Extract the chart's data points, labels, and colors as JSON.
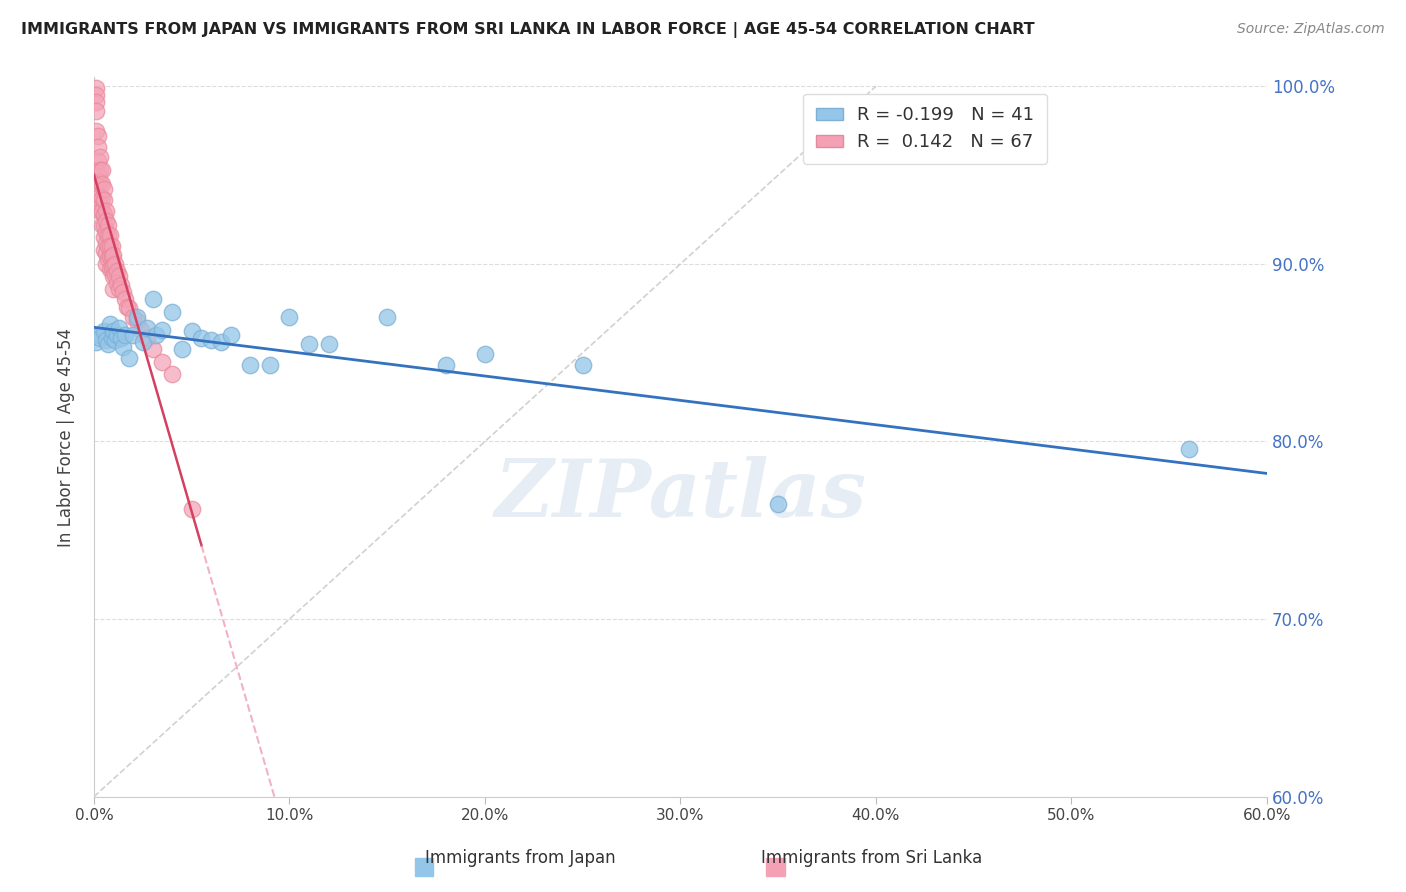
{
  "title": "IMMIGRANTS FROM JAPAN VS IMMIGRANTS FROM SRI LANKA IN LABOR FORCE | AGE 45-54 CORRELATION CHART",
  "source": "Source: ZipAtlas.com",
  "ylabel": "In Labor Force | Age 45-54",
  "xlim": [
    0.0,
    0.6
  ],
  "ylim": [
    0.6,
    1.005
  ],
  "xticks": [
    0.0,
    0.1,
    0.2,
    0.3,
    0.4,
    0.5,
    0.6
  ],
  "yticks": [
    0.6,
    0.7,
    0.8,
    0.9,
    1.0
  ],
  "ytick_labels_right": [
    "60.0%",
    "70.0%",
    "80.0%",
    "90.0%",
    "100.0%"
  ],
  "xtick_labels": [
    "0.0%",
    "10.0%",
    "20.0%",
    "30.0%",
    "40.0%",
    "50.0%",
    "60.0%"
  ],
  "japan_color": "#93C6E8",
  "srilanka_color": "#F4A0B5",
  "japan_edge_color": "#7EB0D5",
  "srilanka_edge_color": "#E8899A",
  "japan_trend_color": "#3472C0",
  "srilanka_trend_solid_color": "#D44060",
  "srilanka_trend_dashed_color": "#E88098",
  "japan_R": -0.199,
  "japan_N": 41,
  "srilanka_R": 0.142,
  "srilanka_N": 67,
  "background_color": "#ffffff",
  "watermark": "ZIPatlas",
  "japan_x": [
    0.001,
    0.003,
    0.003,
    0.005,
    0.006,
    0.007,
    0.008,
    0.009,
    0.01,
    0.011,
    0.012,
    0.013,
    0.014,
    0.015,
    0.016,
    0.018,
    0.02,
    0.022,
    0.025,
    0.027,
    0.03,
    0.032,
    0.035,
    0.04,
    0.045,
    0.05,
    0.055,
    0.06,
    0.065,
    0.07,
    0.08,
    0.09,
    0.1,
    0.11,
    0.12,
    0.15,
    0.18,
    0.2,
    0.25,
    0.35,
    0.56
  ],
  "japan_y": [
    0.856,
    0.86,
    0.858,
    0.862,
    0.857,
    0.855,
    0.866,
    0.858,
    0.862,
    0.857,
    0.86,
    0.864,
    0.858,
    0.853,
    0.86,
    0.847,
    0.86,
    0.87,
    0.856,
    0.864,
    0.88,
    0.86,
    0.863,
    0.873,
    0.852,
    0.862,
    0.858,
    0.857,
    0.856,
    0.86,
    0.843,
    0.843,
    0.87,
    0.855,
    0.855,
    0.87,
    0.843,
    0.849,
    0.843,
    0.765,
    0.796
  ],
  "srilanka_x": [
    0.001,
    0.001,
    0.001,
    0.001,
    0.001,
    0.002,
    0.002,
    0.002,
    0.002,
    0.002,
    0.002,
    0.003,
    0.003,
    0.003,
    0.003,
    0.003,
    0.004,
    0.004,
    0.004,
    0.004,
    0.004,
    0.005,
    0.005,
    0.005,
    0.005,
    0.005,
    0.005,
    0.006,
    0.006,
    0.006,
    0.006,
    0.006,
    0.006,
    0.007,
    0.007,
    0.007,
    0.007,
    0.008,
    0.008,
    0.008,
    0.008,
    0.009,
    0.009,
    0.009,
    0.01,
    0.01,
    0.01,
    0.01,
    0.011,
    0.011,
    0.012,
    0.012,
    0.013,
    0.013,
    0.014,
    0.015,
    0.016,
    0.017,
    0.018,
    0.02,
    0.022,
    0.024,
    0.027,
    0.03,
    0.035,
    0.04,
    0.05
  ],
  "srilanka_y": [
    0.999,
    0.995,
    0.991,
    0.986,
    0.975,
    0.972,
    0.966,
    0.958,
    0.951,
    0.945,
    0.935,
    0.96,
    0.953,
    0.946,
    0.938,
    0.93,
    0.953,
    0.945,
    0.937,
    0.93,
    0.922,
    0.942,
    0.936,
    0.928,
    0.922,
    0.915,
    0.908,
    0.93,
    0.924,
    0.918,
    0.912,
    0.906,
    0.9,
    0.922,
    0.916,
    0.91,
    0.903,
    0.916,
    0.91,
    0.904,
    0.897,
    0.91,
    0.904,
    0.897,
    0.905,
    0.899,
    0.893,
    0.886,
    0.9,
    0.894,
    0.896,
    0.889,
    0.893,
    0.886,
    0.888,
    0.884,
    0.88,
    0.876,
    0.875,
    0.87,
    0.868,
    0.863,
    0.858,
    0.852,
    0.845,
    0.838,
    0.762
  ],
  "diag_line_x": [
    0.0,
    0.4
  ],
  "diag_line_y": [
    0.6,
    1.0
  ]
}
